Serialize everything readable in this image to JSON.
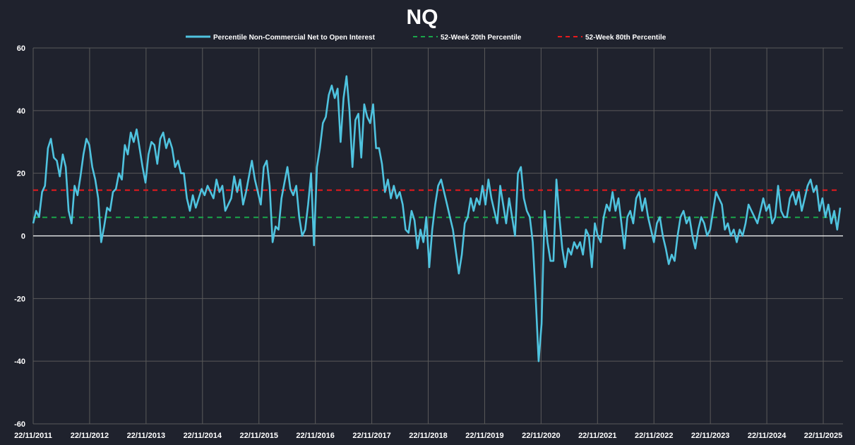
{
  "chart_data": {
    "type": "line",
    "title": "NQ",
    "xlabel": "",
    "ylabel": "",
    "ylim": [
      -60,
      60
    ],
    "yticks": [
      "-60",
      "-40",
      "-20",
      "0",
      "20",
      "40",
      "60"
    ],
    "ytick_values": [
      -60,
      -40,
      -20,
      0,
      20,
      40,
      60
    ],
    "xticks": [
      "22/11/2011",
      "22/11/2012",
      "22/11/2013",
      "22/11/2014",
      "22/11/2015",
      "22/11/2016",
      "22/11/2017",
      "22/11/2018",
      "22/11/2019",
      "22/11/2020",
      "22/11/2021",
      "22/11/2022",
      "22/11/2023",
      "22/11/2024",
      "22/11/2025"
    ],
    "x_range_years_since_start": [
      0,
      14.35
    ],
    "series_span_years": 14.3,
    "grid": true,
    "legend_position": "top",
    "colors": {
      "main": "#4fc3df",
      "p20": "#1aa64a",
      "p80": "#e8191c",
      "grid": "#5a5a5a",
      "zero": "#ffffff"
    },
    "series": [
      {
        "name": "Percentile Non-Commercial Net to Open Interest",
        "style": "solid",
        "values": [
          4,
          8,
          6,
          14,
          16,
          28,
          31,
          25,
          24,
          19,
          26,
          22,
          8,
          4,
          16,
          13,
          19,
          26,
          31,
          29,
          22,
          18,
          12,
          -2,
          3,
          9,
          8,
          14,
          15,
          20,
          18,
          29,
          26,
          33,
          30,
          34,
          28,
          22,
          17,
          26,
          30,
          29,
          23,
          31,
          33,
          28,
          31,
          28,
          22,
          24,
          20,
          20,
          12,
          8,
          13,
          9,
          12,
          15,
          13,
          16,
          14,
          12,
          18,
          14,
          16,
          8,
          10,
          12,
          19,
          14,
          18,
          10,
          14,
          19,
          24,
          18,
          14,
          10,
          22,
          24,
          16,
          -2,
          3,
          2,
          12,
          17,
          22,
          15,
          13,
          16,
          6,
          0,
          2,
          10,
          20,
          -3,
          22,
          28,
          36,
          38,
          45,
          48,
          44,
          47,
          30,
          44,
          51,
          40,
          22,
          37,
          39,
          25,
          42,
          38,
          36,
          42,
          28,
          28,
          23,
          14,
          18,
          12,
          16,
          12,
          14,
          10,
          2,
          1,
          8,
          5,
          -4,
          2,
          -2,
          6,
          -10,
          2,
          10,
          16,
          18,
          14,
          10,
          6,
          2,
          -5,
          -12,
          -6,
          4,
          6,
          12,
          8,
          12,
          10,
          16,
          10,
          18,
          12,
          8,
          4,
          16,
          10,
          4,
          12,
          6,
          0,
          20,
          22,
          12,
          8,
          6,
          -2,
          -20,
          -40,
          -28,
          8,
          -2,
          -8,
          -8,
          18,
          6,
          -4,
          -10,
          -4,
          -6,
          -2,
          -4,
          -2,
          -6,
          2,
          0,
          -10,
          4,
          0,
          -2,
          6,
          10,
          8,
          14,
          8,
          12,
          4,
          -4,
          6,
          8,
          4,
          12,
          14,
          8,
          12,
          6,
          2,
          -2,
          4,
          6,
          0,
          -4,
          -9,
          -6,
          -8,
          0,
          6,
          8,
          4,
          6,
          0,
          -4,
          2,
          6,
          4,
          0,
          2,
          8,
          14,
          12,
          10,
          2,
          4,
          0,
          2,
          -2,
          2,
          0,
          4,
          10,
          8,
          6,
          4,
          8,
          12,
          8,
          10,
          4,
          6,
          16,
          8,
          6,
          6,
          12,
          14,
          10,
          14,
          8,
          12,
          16,
          18,
          14,
          16,
          8,
          12,
          6,
          10,
          4,
          8,
          2,
          9
        ]
      },
      {
        "name": "52-Week 20th Percentile",
        "style": "dashed",
        "value": 5.9
      },
      {
        "name": "52-Week 80th Percentile",
        "style": "dashed",
        "value": 14.6
      }
    ]
  }
}
